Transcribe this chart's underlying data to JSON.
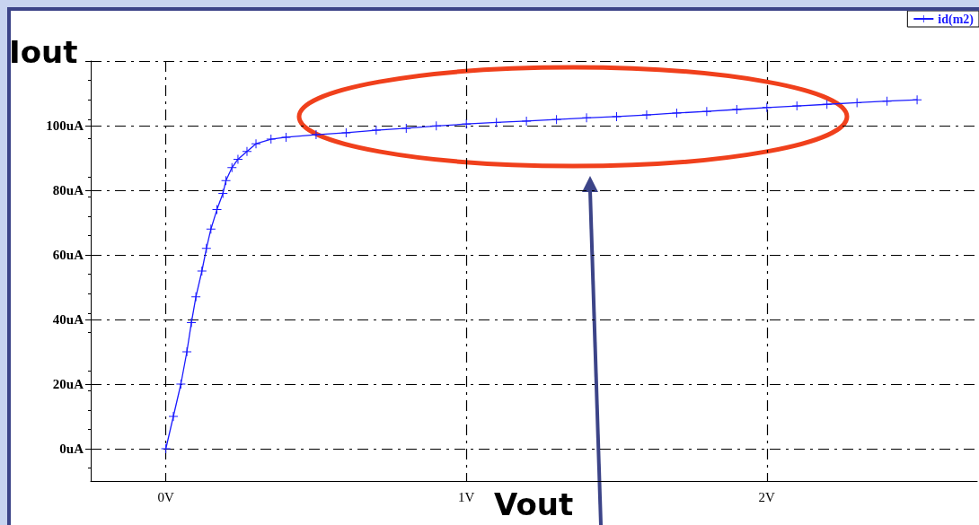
{
  "chart_data": {
    "type": "line",
    "xlabel": "Vout",
    "ylabel": "Iout",
    "x": [
      0,
      0.025,
      0.05,
      0.07,
      0.085,
      0.1,
      0.12,
      0.135,
      0.15,
      0.17,
      0.19,
      0.2,
      0.22,
      0.24,
      0.27,
      0.3,
      0.35,
      0.4,
      0.5,
      0.6,
      0.7,
      0.8,
      0.9,
      1.0,
      1.1,
      1.2,
      1.3,
      1.4,
      1.5,
      1.6,
      1.7,
      1.8,
      1.9,
      2.0,
      2.1,
      2.2,
      2.3,
      2.4,
      2.5
    ],
    "series": [
      {
        "name": "id(m2)",
        "color": "#1a1aff",
        "values": [
          0,
          10,
          20,
          30,
          39,
          47,
          55,
          62,
          68,
          74,
          79,
          83,
          87,
          89.6,
          92,
          94.4,
          95.8,
          96.4,
          97.2,
          97.8,
          98.6,
          99.2,
          99.9,
          100.5,
          101,
          101.4,
          101.9,
          102.4,
          102.8,
          103.3,
          103.9,
          104.4,
          105,
          105.6,
          106.1,
          106.6,
          107.1,
          107.6,
          108
        ]
      }
    ],
    "xlim": [
      -0.25,
      2.7
    ],
    "xticks": [
      {
        "value": 0,
        "label": "0V"
      },
      {
        "value": 1,
        "label": "1V"
      },
      {
        "value": 2,
        "label": "2V"
      }
    ],
    "ylim": [
      -10,
      120
    ],
    "yticks": [
      {
        "value": 0,
        "label": "0uA"
      },
      {
        "value": 20,
        "label": "20uA"
      },
      {
        "value": 40,
        "label": "40uA"
      },
      {
        "value": 60,
        "label": "60uA"
      },
      {
        "value": 80,
        "label": "80uA"
      },
      {
        "value": 100,
        "label": "100uA"
      },
      {
        "value": 120,
        "label": null
      }
    ],
    "grid": true,
    "legend": "top right",
    "marker": "cross",
    "line_style": "solid"
  }
}
